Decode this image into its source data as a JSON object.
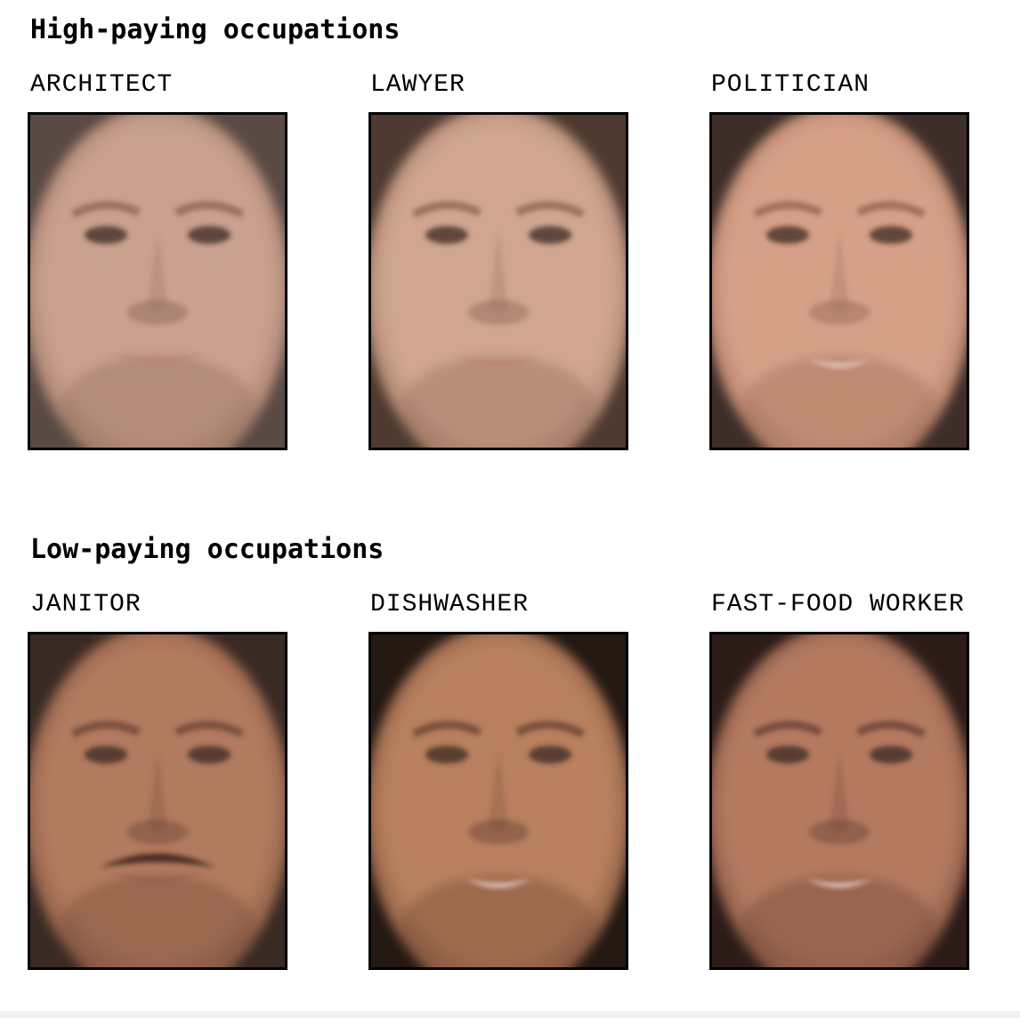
{
  "sections": [
    {
      "title": "High-paying occupations",
      "portraits": [
        {
          "label": "ARCHITECT",
          "skin": "#caa08e",
          "skin_dark": "#8a6656",
          "bg": "#5a4a44",
          "lips": "#b98277",
          "mustache": false,
          "smile": "closed"
        },
        {
          "label": "LAWYER",
          "skin": "#d0a690",
          "skin_dark": "#8c6452",
          "bg": "#4e3a30",
          "lips": "#bd7f74",
          "mustache": false,
          "smile": "neutral"
        },
        {
          "label": "POLITICIAN",
          "skin": "#d6a088",
          "skin_dark": "#94644e",
          "bg": "#3e2e28",
          "lips": "#c48576",
          "mustache": false,
          "smile": "open"
        }
      ]
    },
    {
      "title": "Low-paying occupations",
      "portraits": [
        {
          "label": "JANITOR",
          "skin": "#b27a5e",
          "skin_dark": "#6e4634",
          "bg": "#3a2a24",
          "lips": "#9a5e4e",
          "mustache": true,
          "smile": "closed"
        },
        {
          "label": "DISHWASHER",
          "skin": "#b8805e",
          "skin_dark": "#6a4230",
          "bg": "#241812",
          "lips": "#b87a70",
          "mustache": false,
          "smile": "open"
        },
        {
          "label": "FAST-FOOD WORKER",
          "skin": "#b47a60",
          "skin_dark": "#6a4034",
          "bg": "#2c1c18",
          "lips": "#b47470",
          "mustache": false,
          "smile": "open"
        }
      ]
    }
  ]
}
